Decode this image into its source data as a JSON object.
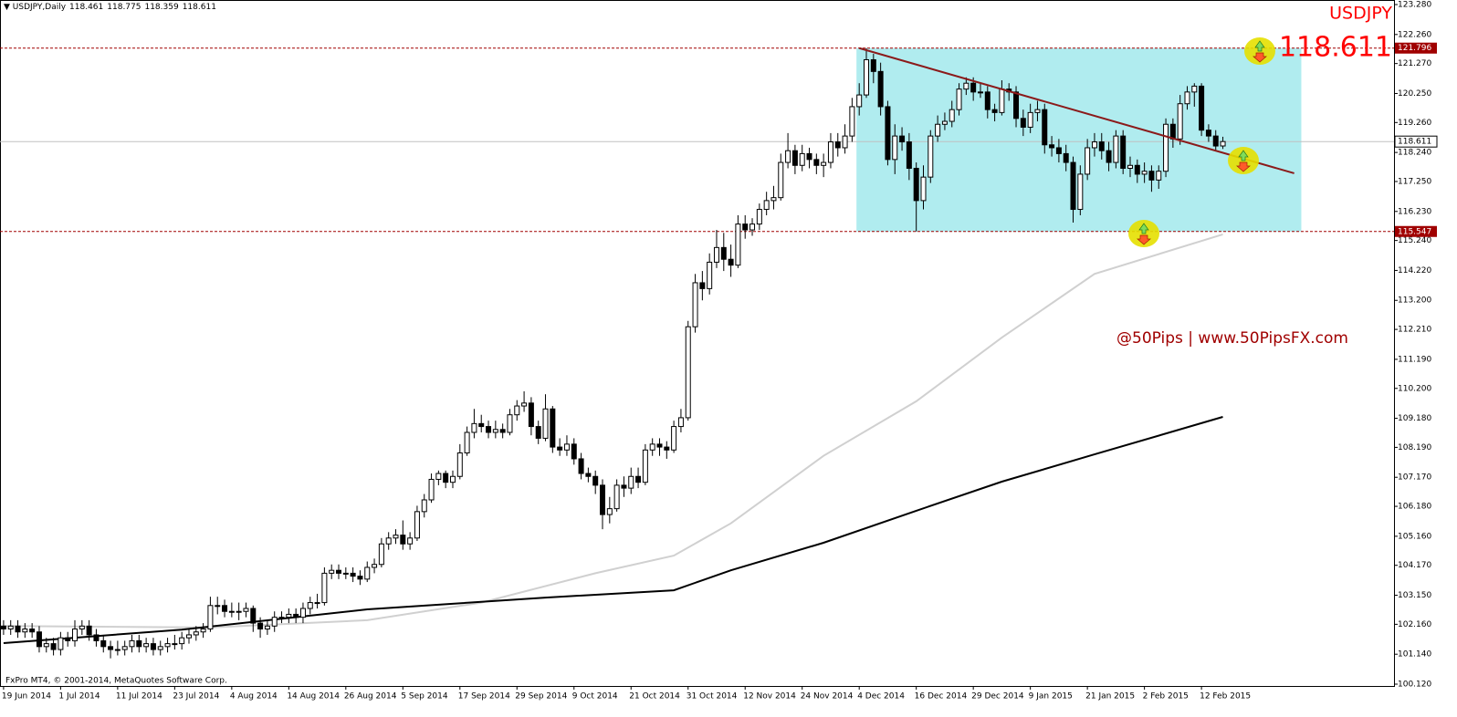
{
  "chart_data": {
    "type": "candlestick",
    "symbol_period": "USDJPY,Daily",
    "symbol": "USDJPY",
    "watermark": "@50Pips | www.50PipsFX.com",
    "copyright": "FxPro MT4, © 2001-2014, MetaQuotes Software Corp.",
    "up_color": "#ffffff",
    "down_color": "#000000",
    "xlim": [
      -0.5,
      195
    ],
    "ylim": [
      100.12,
      123.28
    ],
    "yticks": [
      {
        "value": 123.28,
        "label": "123.280"
      },
      {
        "value": 122.26,
        "label": "122.260"
      },
      {
        "value": 121.27,
        "label": "121.270"
      },
      {
        "value": 120.25,
        "label": "120.250"
      },
      {
        "value": 119.26,
        "label": "119.260"
      },
      {
        "value": 118.24,
        "label": "118.240"
      },
      {
        "value": 117.25,
        "label": "117.250"
      },
      {
        "value": 116.23,
        "label": "116.230"
      },
      {
        "value": 115.24,
        "label": "115.240"
      },
      {
        "value": 114.22,
        "label": "114.220"
      },
      {
        "value": 113.2,
        "label": "113.200"
      },
      {
        "value": 112.21,
        "label": "112.210"
      },
      {
        "value": 111.19,
        "label": "111.190"
      },
      {
        "value": 110.2,
        "label": "110.200"
      },
      {
        "value": 109.18,
        "label": "109.180"
      },
      {
        "value": 108.19,
        "label": "108.190"
      },
      {
        "value": 107.17,
        "label": "107.170"
      },
      {
        "value": 106.18,
        "label": "106.180"
      },
      {
        "value": 105.16,
        "label": "105.160"
      },
      {
        "value": 104.17,
        "label": "104.170"
      },
      {
        "value": 103.15,
        "label": "103.150"
      },
      {
        "value": 102.16,
        "label": "102.160"
      },
      {
        "value": 101.14,
        "label": "101.140"
      },
      {
        "value": 100.12,
        "label": "100.120"
      }
    ],
    "xticks": [
      {
        "value": 0,
        "label": "19 Jun 2014"
      },
      {
        "value": 8,
        "label": "1 Jul 2014"
      },
      {
        "value": 16,
        "label": "11 Jul 2014"
      },
      {
        "value": 24,
        "label": "23 Jul 2014"
      },
      {
        "value": 32,
        "label": "4 Aug 2014"
      },
      {
        "value": 40,
        "label": "14 Aug 2014"
      },
      {
        "value": 48,
        "label": "26 Aug 2014"
      },
      {
        "value": 56,
        "label": "5 Sep 2014"
      },
      {
        "value": 64,
        "label": "17 Sep 2014"
      },
      {
        "value": 72,
        "label": "29 Sep 2014"
      },
      {
        "value": 80,
        "label": "9 Oct 2014"
      },
      {
        "value": 88,
        "label": "21 Oct 2014"
      },
      {
        "value": 96,
        "label": "31 Oct 2014"
      },
      {
        "value": 104,
        "label": "12 Nov 2014"
      },
      {
        "value": 112,
        "label": "24 Nov 2014"
      },
      {
        "value": 120,
        "label": "4 Dec 2014"
      },
      {
        "value": 128,
        "label": "16 Dec 2014"
      },
      {
        "value": 136,
        "label": "29 Dec 2014"
      },
      {
        "value": 144,
        "label": "9 Jan 2015"
      },
      {
        "value": 152,
        "label": "21 Jan 2015"
      },
      {
        "value": 160,
        "label": "2 Feb 2015"
      },
      {
        "value": 168,
        "label": "12 Feb 2015"
      }
    ],
    "levels": [
      {
        "value": 121.796,
        "color": "#a00000"
      },
      {
        "value": 115.547,
        "color": "#a00000"
      }
    ],
    "channel": {
      "x": [
        120,
        182
      ],
      "y": [
        115.547,
        121.796
      ],
      "color": "#b0ecef"
    },
    "trendline": {
      "x": [
        120,
        181
      ],
      "y": [
        121.796,
        117.53
      ],
      "color": "#8b1a1a"
    },
    "lines": [
      {
        "color": "#d0d0d0",
        "x": [
          0,
          29,
          51,
          67,
          83,
          94,
          102,
          115,
          128,
          140,
          153,
          171
        ],
        "values": [
          102.1,
          102.05,
          102.3,
          102.9,
          103.9,
          104.5,
          105.6,
          107.9,
          109.76,
          111.93,
          114.1,
          115.45
        ]
      },
      {
        "color": "#000000",
        "x": [
          0,
          25,
          51,
          76,
          94,
          102,
          115,
          128,
          140,
          153,
          171
        ],
        "values": [
          101.52,
          101.98,
          102.67,
          103.07,
          103.32,
          104.0,
          104.94,
          106.03,
          107.02,
          107.95,
          109.23
        ]
      }
    ],
    "candles": [
      [
        102.1,
        102.3,
        101.8,
        102.0
      ],
      [
        102.0,
        102.3,
        101.8,
        102.1
      ],
      [
        102.1,
        102.3,
        101.7,
        101.9
      ],
      [
        101.9,
        102.2,
        101.7,
        102.0
      ],
      [
        102.0,
        102.2,
        101.7,
        101.9
      ],
      [
        101.9,
        102.1,
        101.2,
        101.4
      ],
      [
        101.4,
        101.7,
        101.2,
        101.5
      ],
      [
        101.5,
        101.7,
        101.1,
        101.3
      ],
      [
        101.3,
        101.9,
        101.1,
        101.7
      ],
      [
        101.7,
        101.9,
        101.4,
        101.6
      ],
      [
        101.6,
        102.3,
        101.4,
        102.0
      ],
      [
        102.0,
        102.3,
        101.8,
        102.1
      ],
      [
        102.1,
        102.3,
        101.6,
        101.8
      ],
      [
        101.8,
        102.0,
        101.4,
        101.6
      ],
      [
        101.6,
        101.8,
        101.2,
        101.4
      ],
      [
        101.4,
        101.6,
        101.0,
        101.3
      ],
      [
        101.3,
        101.6,
        101.1,
        101.3
      ],
      [
        101.3,
        101.6,
        101.1,
        101.4
      ],
      [
        101.4,
        101.8,
        101.2,
        101.6
      ],
      [
        101.6,
        101.8,
        101.2,
        101.4
      ],
      [
        101.4,
        101.7,
        101.2,
        101.5
      ],
      [
        101.5,
        101.7,
        101.1,
        101.3
      ],
      [
        101.3,
        101.6,
        101.1,
        101.4
      ],
      [
        101.4,
        101.7,
        101.2,
        101.5
      ],
      [
        101.5,
        101.8,
        101.3,
        101.5
      ],
      [
        101.5,
        101.9,
        101.3,
        101.7
      ],
      [
        101.7,
        102.0,
        101.5,
        101.8
      ],
      [
        101.8,
        102.1,
        101.6,
        101.9
      ],
      [
        101.9,
        102.2,
        101.7,
        102.0
      ],
      [
        102.0,
        103.1,
        101.9,
        102.8
      ],
      [
        102.8,
        103.1,
        102.5,
        102.8
      ],
      [
        102.8,
        103.0,
        102.4,
        102.6
      ],
      [
        102.6,
        102.9,
        102.4,
        102.6
      ],
      [
        102.6,
        102.9,
        102.3,
        102.6
      ],
      [
        102.6,
        102.9,
        102.4,
        102.7
      ],
      [
        102.7,
        102.8,
        101.9,
        102.2
      ],
      [
        102.2,
        102.4,
        101.7,
        102.0
      ],
      [
        102.0,
        102.3,
        101.8,
        102.1
      ],
      [
        102.1,
        102.6,
        101.9,
        102.4
      ],
      [
        102.4,
        102.6,
        102.2,
        102.4
      ],
      [
        102.4,
        102.7,
        102.2,
        102.5
      ],
      [
        102.5,
        102.7,
        102.2,
        102.4
      ],
      [
        102.4,
        102.9,
        102.2,
        102.7
      ],
      [
        102.7,
        103.1,
        102.5,
        102.9
      ],
      [
        102.9,
        103.2,
        102.7,
        102.9
      ],
      [
        102.9,
        104.1,
        102.8,
        103.9
      ],
      [
        103.9,
        104.2,
        103.7,
        104.0
      ],
      [
        104.0,
        104.2,
        103.7,
        103.9
      ],
      [
        103.9,
        104.1,
        103.7,
        103.9
      ],
      [
        103.9,
        104.1,
        103.6,
        103.8
      ],
      [
        103.8,
        104.0,
        103.5,
        103.7
      ],
      [
        103.7,
        104.3,
        103.6,
        104.1
      ],
      [
        104.1,
        104.4,
        103.9,
        104.2
      ],
      [
        104.2,
        105.1,
        104.1,
        104.9
      ],
      [
        104.9,
        105.3,
        104.7,
        105.1
      ],
      [
        105.1,
        105.4,
        104.9,
        105.2
      ],
      [
        105.2,
        105.7,
        104.7,
        104.9
      ],
      [
        104.9,
        105.3,
        104.7,
        105.1
      ],
      [
        105.1,
        106.2,
        105.0,
        106.0
      ],
      [
        106.0,
        106.6,
        105.8,
        106.4
      ],
      [
        106.4,
        107.3,
        106.3,
        107.1
      ],
      [
        107.1,
        107.4,
        106.9,
        107.3
      ],
      [
        107.3,
        107.4,
        106.8,
        107.0
      ],
      [
        107.0,
        107.4,
        106.8,
        107.2
      ],
      [
        107.2,
        108.3,
        107.1,
        108.0
      ],
      [
        108.0,
        108.9,
        107.9,
        108.7
      ],
      [
        108.7,
        109.5,
        108.5,
        109.0
      ],
      [
        109.0,
        109.3,
        108.7,
        108.9
      ],
      [
        108.9,
        109.1,
        108.5,
        108.7
      ],
      [
        108.7,
        109.1,
        108.5,
        108.8
      ],
      [
        108.8,
        109.0,
        108.5,
        108.7
      ],
      [
        108.7,
        109.5,
        108.6,
        109.3
      ],
      [
        109.3,
        109.8,
        109.1,
        109.6
      ],
      [
        109.6,
        110.1,
        109.4,
        109.7
      ],
      [
        109.7,
        109.9,
        108.6,
        108.9
      ],
      [
        108.9,
        109.1,
        108.3,
        108.5
      ],
      [
        108.5,
        110.0,
        108.4,
        109.5
      ],
      [
        109.5,
        109.6,
        108.0,
        108.2
      ],
      [
        108.2,
        108.5,
        107.9,
        108.1
      ],
      [
        108.1,
        108.6,
        107.9,
        108.3
      ],
      [
        108.3,
        108.5,
        107.6,
        107.8
      ],
      [
        107.8,
        108.0,
        107.1,
        107.3
      ],
      [
        107.3,
        107.5,
        107.0,
        107.2
      ],
      [
        107.2,
        107.4,
        106.6,
        106.9
      ],
      [
        106.9,
        107.1,
        105.4,
        105.9
      ],
      [
        105.9,
        106.5,
        105.6,
        106.1
      ],
      [
        106.1,
        107.1,
        106.0,
        106.9
      ],
      [
        106.9,
        107.2,
        106.5,
        106.8
      ],
      [
        106.8,
        107.5,
        106.6,
        107.2
      ],
      [
        107.2,
        107.5,
        106.8,
        107.0
      ],
      [
        107.0,
        108.3,
        106.9,
        108.1
      ],
      [
        108.1,
        108.5,
        107.9,
        108.3
      ],
      [
        108.3,
        108.5,
        107.9,
        108.2
      ],
      [
        108.2,
        108.4,
        107.8,
        108.1
      ],
      [
        108.1,
        109.1,
        108.0,
        108.9
      ],
      [
        108.9,
        109.5,
        108.7,
        109.2
      ],
      [
        109.2,
        112.5,
        109.1,
        112.3
      ],
      [
        112.3,
        114.1,
        112.1,
        113.8
      ],
      [
        113.8,
        114.2,
        113.2,
        113.6
      ],
      [
        113.6,
        114.8,
        113.4,
        114.5
      ],
      [
        114.5,
        115.6,
        114.3,
        115.0
      ],
      [
        115.0,
        115.5,
        114.2,
        114.6
      ],
      [
        114.6,
        115.1,
        114.0,
        114.4
      ],
      [
        114.4,
        116.1,
        114.3,
        115.8
      ],
      [
        115.8,
        116.1,
        115.3,
        115.6
      ],
      [
        115.6,
        116.0,
        115.4,
        115.8
      ],
      [
        115.8,
        116.5,
        115.6,
        116.3
      ],
      [
        116.3,
        116.9,
        116.1,
        116.6
      ],
      [
        116.6,
        117.1,
        116.3,
        116.7
      ],
      [
        116.7,
        118.2,
        116.6,
        117.9
      ],
      [
        117.9,
        118.9,
        117.7,
        118.3
      ],
      [
        118.3,
        118.5,
        117.5,
        117.8
      ],
      [
        117.8,
        118.5,
        117.6,
        118.2
      ],
      [
        118.2,
        118.4,
        117.7,
        118.0
      ],
      [
        118.0,
        118.2,
        117.5,
        117.8
      ],
      [
        117.8,
        118.2,
        117.4,
        117.9
      ],
      [
        117.9,
        118.9,
        117.7,
        118.6
      ],
      [
        118.6,
        118.9,
        118.1,
        118.4
      ],
      [
        118.4,
        119.2,
        118.2,
        118.8
      ],
      [
        118.8,
        120.1,
        118.6,
        119.8
      ],
      [
        119.8,
        120.6,
        119.5,
        120.2
      ],
      [
        120.2,
        121.796,
        120.1,
        121.4
      ],
      [
        121.4,
        121.6,
        120.6,
        121.0
      ],
      [
        121.0,
        121.3,
        119.5,
        119.8
      ],
      [
        119.8,
        120.0,
        117.8,
        118.0
      ],
      [
        118.0,
        119.2,
        117.5,
        118.8
      ],
      [
        118.8,
        119.1,
        118.3,
        118.6
      ],
      [
        118.6,
        118.9,
        117.3,
        117.7
      ],
      [
        117.7,
        117.9,
        115.547,
        116.6
      ],
      [
        116.6,
        117.8,
        116.3,
        117.4
      ],
      [
        117.4,
        119.0,
        117.2,
        118.8
      ],
      [
        118.8,
        119.5,
        118.6,
        119.2
      ],
      [
        119.2,
        119.6,
        119.0,
        119.3
      ],
      [
        119.3,
        120.0,
        119.1,
        119.7
      ],
      [
        119.7,
        120.6,
        119.5,
        120.4
      ],
      [
        120.4,
        120.8,
        120.2,
        120.6
      ],
      [
        120.6,
        120.8,
        120.0,
        120.3
      ],
      [
        120.3,
        120.6,
        120.1,
        120.3
      ],
      [
        120.3,
        120.5,
        119.4,
        119.7
      ],
      [
        119.7,
        119.9,
        119.3,
        119.6
      ],
      [
        119.6,
        120.7,
        119.5,
        120.4
      ],
      [
        120.4,
        120.6,
        120.0,
        120.3
      ],
      [
        120.3,
        120.5,
        119.1,
        119.4
      ],
      [
        119.4,
        119.7,
        118.8,
        119.1
      ],
      [
        119.1,
        119.9,
        118.9,
        119.6
      ],
      [
        119.6,
        120.0,
        119.3,
        119.7
      ],
      [
        119.7,
        119.9,
        118.2,
        118.5
      ],
      [
        118.5,
        118.8,
        118.1,
        118.4
      ],
      [
        118.4,
        118.7,
        117.9,
        118.2
      ],
      [
        118.2,
        118.5,
        117.6,
        117.9
      ],
      [
        117.9,
        118.1,
        115.85,
        116.3
      ],
      [
        116.3,
        117.8,
        116.1,
        117.5
      ],
      [
        117.5,
        118.7,
        117.3,
        118.4
      ],
      [
        118.4,
        118.9,
        118.1,
        118.6
      ],
      [
        118.6,
        118.9,
        118.0,
        118.3
      ],
      [
        118.3,
        118.6,
        117.6,
        117.9
      ],
      [
        117.9,
        119.0,
        117.7,
        118.8
      ],
      [
        118.8,
        119.0,
        117.5,
        117.7
      ],
      [
        117.7,
        118.1,
        117.4,
        117.8
      ],
      [
        117.8,
        118.0,
        117.2,
        117.5
      ],
      [
        117.5,
        117.9,
        117.2,
        117.6
      ],
      [
        117.6,
        117.8,
        116.9,
        117.3
      ],
      [
        117.3,
        117.8,
        117.0,
        117.6
      ],
      [
        117.6,
        119.4,
        117.4,
        119.2
      ],
      [
        119.2,
        119.4,
        118.4,
        118.7
      ],
      [
        118.7,
        120.2,
        118.5,
        119.9
      ],
      [
        119.9,
        120.5,
        119.7,
        120.3
      ],
      [
        120.3,
        120.6,
        119.8,
        120.5
      ],
      [
        120.5,
        120.6,
        118.8,
        119.0
      ],
      [
        119.0,
        119.2,
        118.6,
        118.8
      ],
      [
        118.8,
        119.0,
        118.3,
        118.46
      ],
      [
        118.461,
        118.775,
        118.359,
        118.611
      ]
    ]
  }
}
